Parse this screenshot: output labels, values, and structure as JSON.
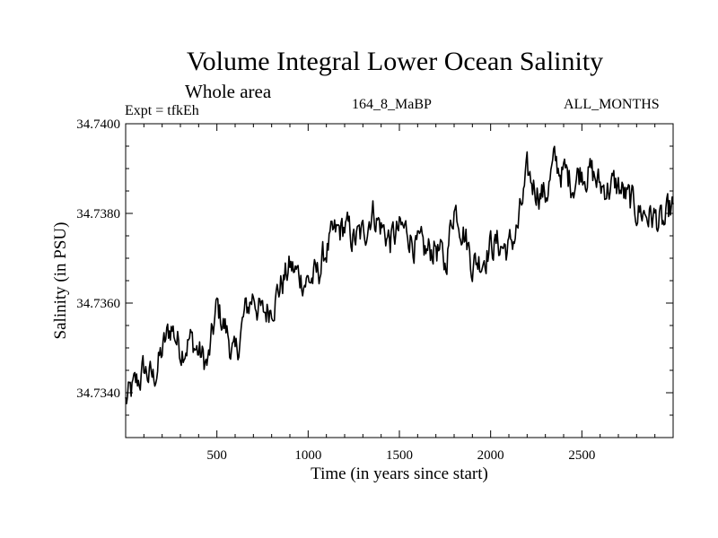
{
  "chart_data": {
    "type": "line",
    "title": "Volume Integral Lower Ocean Salinity",
    "subtitle": "Whole area",
    "annotations": {
      "experiment": "Expt = tfkEh",
      "run": "164_8_MaBP",
      "period": "ALL_MONTHS"
    },
    "xlabel": "Time (in years since start)",
    "ylabel": "Salinity (in PSU)",
    "xlim": [
      0,
      3000
    ],
    "ylim": [
      34.733,
      34.74
    ],
    "x_ticks": [
      500,
      1000,
      1500,
      2000,
      2500
    ],
    "x_tick_labels": [
      "500",
      "1000",
      "1500",
      "2000",
      "2500"
    ],
    "y_ticks": [
      34.734,
      34.736,
      34.738,
      34.74
    ],
    "y_tick_labels": [
      "34.7340",
      "34.7360",
      "34.7380",
      "34.7400"
    ],
    "grid": false,
    "series": [
      {
        "color": "#000000",
        "x": [
          0,
          50,
          100,
          150,
          200,
          250,
          300,
          350,
          400,
          450,
          500,
          550,
          600,
          650,
          700,
          750,
          800,
          850,
          900,
          950,
          1000,
          1050,
          1100,
          1150,
          1200,
          1250,
          1300,
          1350,
          1400,
          1450,
          1500,
          1550,
          1600,
          1650,
          1700,
          1750,
          1800,
          1850,
          1900,
          1950,
          2000,
          2050,
          2100,
          2150,
          2200,
          2250,
          2300,
          2350,
          2400,
          2450,
          2500,
          2550,
          2600,
          2650,
          2700,
          2750,
          2800,
          2850,
          2900,
          2950,
          3000
        ],
        "y": [
          34.7338,
          34.7341,
          34.7345,
          34.7343,
          34.7349,
          34.7355,
          34.735,
          34.7352,
          34.7349,
          34.7346,
          34.7359,
          34.7354,
          34.7347,
          34.7357,
          34.7362,
          34.7357,
          34.736,
          34.7364,
          34.7368,
          34.7366,
          34.7365,
          34.7366,
          34.7372,
          34.7375,
          34.7377,
          34.7374,
          34.7375,
          34.7381,
          34.7377,
          34.7374,
          34.7376,
          34.7376,
          34.7372,
          34.7371,
          34.7373,
          34.7368,
          34.7382,
          34.7377,
          34.7369,
          34.737,
          34.7373,
          34.7373,
          34.7372,
          34.7377,
          34.7388,
          34.7386,
          34.7384,
          34.7391,
          34.7389,
          34.7387,
          34.739,
          34.7389,
          34.7386,
          34.7386,
          34.7386,
          34.7383,
          34.7381,
          34.738,
          34.7379,
          34.7377,
          34.7382
        ]
      }
    ]
  }
}
